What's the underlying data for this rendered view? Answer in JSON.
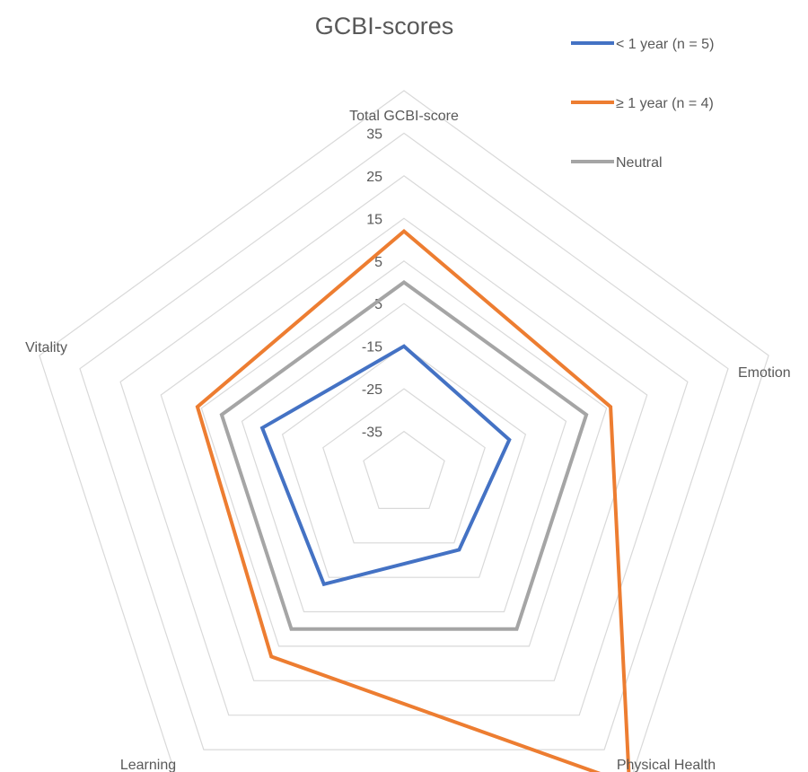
{
  "chart_data": {
    "type": "radar",
    "title": "GCBI-scores",
    "categories": [
      "Total GCBI-score",
      "Emotion",
      "Physical Health",
      "Learning",
      "Vitality"
    ],
    "axis": {
      "min": -45,
      "max": 45,
      "ticks": [
        35,
        25,
        15,
        5,
        -5,
        -15,
        -25,
        -35
      ]
    },
    "grid": true,
    "legend_position": "top-right",
    "series": [
      {
        "name": "< 1 year (n = 5)",
        "color": "#4472C4",
        "values": [
          -15,
          -19,
          -23,
          -13,
          -10
        ]
      },
      {
        "name": "≥ 1 year (n = 4)",
        "color": "#ED7D31",
        "values": [
          12,
          6,
          45,
          8,
          6
        ]
      },
      {
        "name": "Neutral",
        "color": "#A5A5A5",
        "values": [
          0,
          0,
          0,
          0,
          0
        ]
      }
    ]
  }
}
